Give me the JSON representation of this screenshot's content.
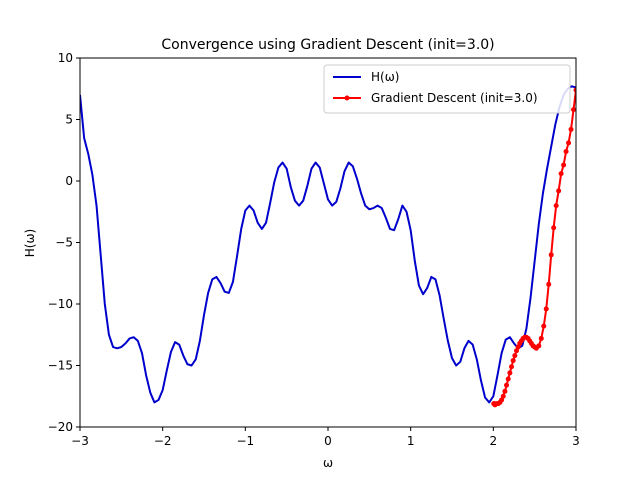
{
  "chart_data": {
    "type": "line",
    "title": "Convergence using Gradient Descent (init=3.0)",
    "xlabel": "ω",
    "ylabel": "H(ω)",
    "xlim": [
      -3,
      3
    ],
    "ylim": [
      -20,
      10
    ],
    "xticks": [
      -3,
      -2,
      -1,
      0,
      1,
      2,
      3
    ],
    "yticks": [
      -20,
      -15,
      -10,
      -5,
      0,
      5,
      10
    ],
    "grid": false,
    "legend_position": "top-right",
    "series": [
      {
        "name": "H(ω)",
        "color": "#0000cc",
        "marker": "none",
        "x": [
          -3.0,
          -2.95,
          -2.9,
          -2.85,
          -2.8,
          -2.75,
          -2.7,
          -2.65,
          -2.6,
          -2.55,
          -2.5,
          -2.45,
          -2.4,
          -2.35,
          -2.3,
          -2.25,
          -2.2,
          -2.15,
          -2.1,
          -2.05,
          -2.0,
          -1.95,
          -1.9,
          -1.85,
          -1.8,
          -1.75,
          -1.7,
          -1.65,
          -1.6,
          -1.55,
          -1.5,
          -1.45,
          -1.4,
          -1.35,
          -1.3,
          -1.25,
          -1.2,
          -1.15,
          -1.1,
          -1.05,
          -1.0,
          -0.95,
          -0.9,
          -0.85,
          -0.8,
          -0.75,
          -0.7,
          -0.65,
          -0.6,
          -0.55,
          -0.5,
          -0.45,
          -0.4,
          -0.35,
          -0.3,
          -0.25,
          -0.2,
          -0.15,
          -0.1,
          -0.05,
          0.0,
          0.05,
          0.1,
          0.15,
          0.2,
          0.25,
          0.3,
          0.35,
          0.4,
          0.45,
          0.5,
          0.55,
          0.6,
          0.65,
          0.7,
          0.75,
          0.8,
          0.85,
          0.9,
          0.95,
          1.0,
          1.05,
          1.1,
          1.15,
          1.2,
          1.25,
          1.3,
          1.35,
          1.4,
          1.45,
          1.5,
          1.55,
          1.6,
          1.65,
          1.7,
          1.75,
          1.8,
          1.85,
          1.9,
          1.95,
          2.0,
          2.05,
          2.1,
          2.15,
          2.2,
          2.25,
          2.3,
          2.35,
          2.4,
          2.45,
          2.5,
          2.55,
          2.6,
          2.65,
          2.7,
          2.75,
          2.8,
          2.85,
          2.9,
          2.95,
          3.0
        ],
        "y": [
          7.0,
          3.5,
          2.2,
          0.5,
          -2.0,
          -6.0,
          -10.0,
          -12.5,
          -13.5,
          -13.6,
          -13.5,
          -13.2,
          -12.8,
          -12.7,
          -13.0,
          -14.0,
          -15.8,
          -17.2,
          -18.0,
          -17.8,
          -17.0,
          -15.4,
          -13.9,
          -13.1,
          -13.3,
          -14.2,
          -14.9,
          -15.0,
          -14.5,
          -13.0,
          -10.9,
          -9.1,
          -8.0,
          -7.8,
          -8.3,
          -9.0,
          -9.1,
          -8.2,
          -6.1,
          -3.9,
          -2.4,
          -2.0,
          -2.4,
          -3.4,
          -3.9,
          -3.4,
          -1.8,
          -0.1,
          1.1,
          1.5,
          1.0,
          -0.5,
          -1.6,
          -2.0,
          -1.6,
          -0.4,
          1.0,
          1.5,
          1.1,
          -0.2,
          -1.5,
          -2.0,
          -1.7,
          -0.6,
          0.8,
          1.5,
          1.2,
          0.2,
          -1.0,
          -2.0,
          -2.3,
          -2.2,
          -2.0,
          -2.2,
          -3.0,
          -3.9,
          -4.0,
          -3.1,
          -2.0,
          -2.5,
          -4.0,
          -6.5,
          -8.5,
          -9.2,
          -8.7,
          -7.8,
          -8.0,
          -9.3,
          -11.2,
          -13.0,
          -14.4,
          -15.0,
          -14.7,
          -13.6,
          -13.0,
          -13.3,
          -14.5,
          -16.2,
          -17.6,
          -18.0,
          -17.5,
          -15.8,
          -14.0,
          -12.9,
          -12.7,
          -13.2,
          -13.6,
          -13.4,
          -12.0,
          -9.5,
          -6.5,
          -3.5,
          -1.0,
          1.0,
          2.8,
          4.6,
          6.0,
          7.0,
          7.5,
          7.7,
          7.6
        ]
      },
      {
        "name": "Gradient Descent (init=3.0)",
        "color": "#ff0000",
        "marker": "circle",
        "x": [
          3.0,
          2.97,
          2.94,
          2.91,
          2.88,
          2.85,
          2.82,
          2.79,
          2.76,
          2.73,
          2.7,
          2.67,
          2.64,
          2.61,
          2.58,
          2.55,
          2.52,
          2.5,
          2.48,
          2.46,
          2.44,
          2.42,
          2.4,
          2.38,
          2.36,
          2.34,
          2.32,
          2.3,
          2.28,
          2.26,
          2.24,
          2.22,
          2.2,
          2.18,
          2.16,
          2.14,
          2.12,
          2.1,
          2.08,
          2.06,
          2.04,
          2.02,
          2.01,
          2.005
        ],
        "y": [
          7.4,
          5.8,
          4.2,
          3.1,
          2.4,
          1.3,
          0.6,
          -0.8,
          -2.0,
          -3.8,
          -6.0,
          -8.4,
          -10.4,
          -11.8,
          -12.8,
          -13.4,
          -13.6,
          -13.5,
          -13.4,
          -13.2,
          -13.0,
          -12.8,
          -12.7,
          -12.7,
          -12.8,
          -13.0,
          -13.2,
          -13.5,
          -13.8,
          -14.2,
          -14.6,
          -15.1,
          -15.6,
          -16.1,
          -16.6,
          -17.1,
          -17.5,
          -17.8,
          -18.0,
          -18.1,
          -18.1,
          -18.2,
          -18.1,
          -18.1
        ]
      }
    ]
  }
}
